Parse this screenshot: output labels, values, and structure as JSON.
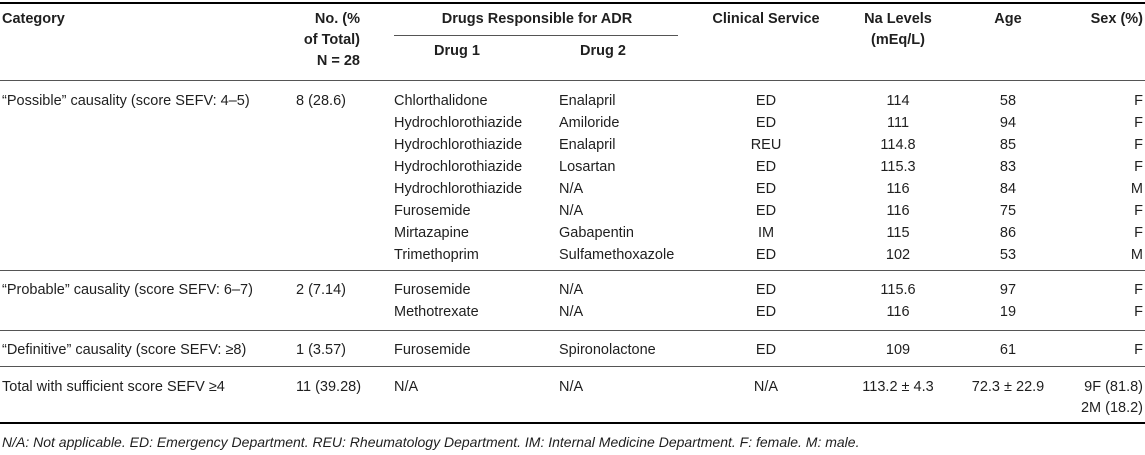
{
  "header": {
    "category": "Category",
    "total_line1": "No. (%",
    "total_line2": "of Total)",
    "total_line3": "N = 28",
    "drugs_group": "Drugs Responsible for ADR",
    "drug1": "Drug 1",
    "drug2": "Drug 2",
    "service": "Clinical Service",
    "na_line1": "Na Levels",
    "na_line2": "(mEq/L)",
    "age": "Age",
    "sex": "Sex (%)"
  },
  "groups": [
    {
      "category": "“Possible” causality (score SEFV: 4–5)",
      "count": "8 (28.6)",
      "rows": [
        {
          "drug1": "Chlorthalidone",
          "drug2": "Enalapril",
          "service": "ED",
          "na": "114",
          "age": "58",
          "sex": "F"
        },
        {
          "drug1": "Hydrochlorothiazide",
          "drug2": "Amiloride",
          "service": "ED",
          "na": "111",
          "age": "94",
          "sex": "F"
        },
        {
          "drug1": "Hydrochlorothiazide",
          "drug2": "Enalapril",
          "service": "REU",
          "na": "114.8",
          "age": "85",
          "sex": "F"
        },
        {
          "drug1": "Hydrochlorothiazide",
          "drug2": "Losartan",
          "service": "ED",
          "na": "115.3",
          "age": "83",
          "sex": "F"
        },
        {
          "drug1": "Hydrochlorothiazide",
          "drug2": "N/A",
          "service": "ED",
          "na": "116",
          "age": "84",
          "sex": "M"
        },
        {
          "drug1": "Furosemide",
          "drug2": "N/A",
          "service": "ED",
          "na": "116",
          "age": "75",
          "sex": "F"
        },
        {
          "drug1": "Mirtazapine",
          "drug2": "Gabapentin",
          "service": "IM",
          "na": "115",
          "age": "86",
          "sex": "F"
        },
        {
          "drug1": "Trimethoprim",
          "drug2": "Sulfamethoxazole",
          "service": "ED",
          "na": "102",
          "age": "53",
          "sex": "M"
        }
      ]
    },
    {
      "category": "“Probable” causality (score SEFV: 6–7)",
      "count": "2 (7.14)",
      "rows": [
        {
          "drug1": "Furosemide",
          "drug2": "N/A",
          "service": "ED",
          "na": "115.6",
          "age": "97",
          "sex": "F"
        },
        {
          "drug1": "Methotrexate",
          "drug2": "N/A",
          "service": "ED",
          "na": "116",
          "age": "19",
          "sex": "F"
        }
      ]
    },
    {
      "category": "“Definitive” causality (score SEFV: ≥8)",
      "count": "1 (3.57)",
      "rows": [
        {
          "drug1": "Furosemide",
          "drug2": "Spironolactone",
          "service": "ED",
          "na": "109",
          "age": "61",
          "sex": "F"
        }
      ]
    }
  ],
  "total_row": {
    "category": "Total with sufficient score SEFV ≥4",
    "count": "11 (39.28)",
    "drug1": "N/A",
    "drug2": "N/A",
    "service": "N/A",
    "na": "113.2 ± 4.3",
    "age": "72.3 ± 22.9",
    "sex_line1": "9F (81.8)",
    "sex_line2": "2M (18.2)"
  },
  "footnote": "N/A: Not applicable. ED: Emergency Department. REU: Rheumatology Department. IM: Internal Medicine Department. F: female. M: male."
}
